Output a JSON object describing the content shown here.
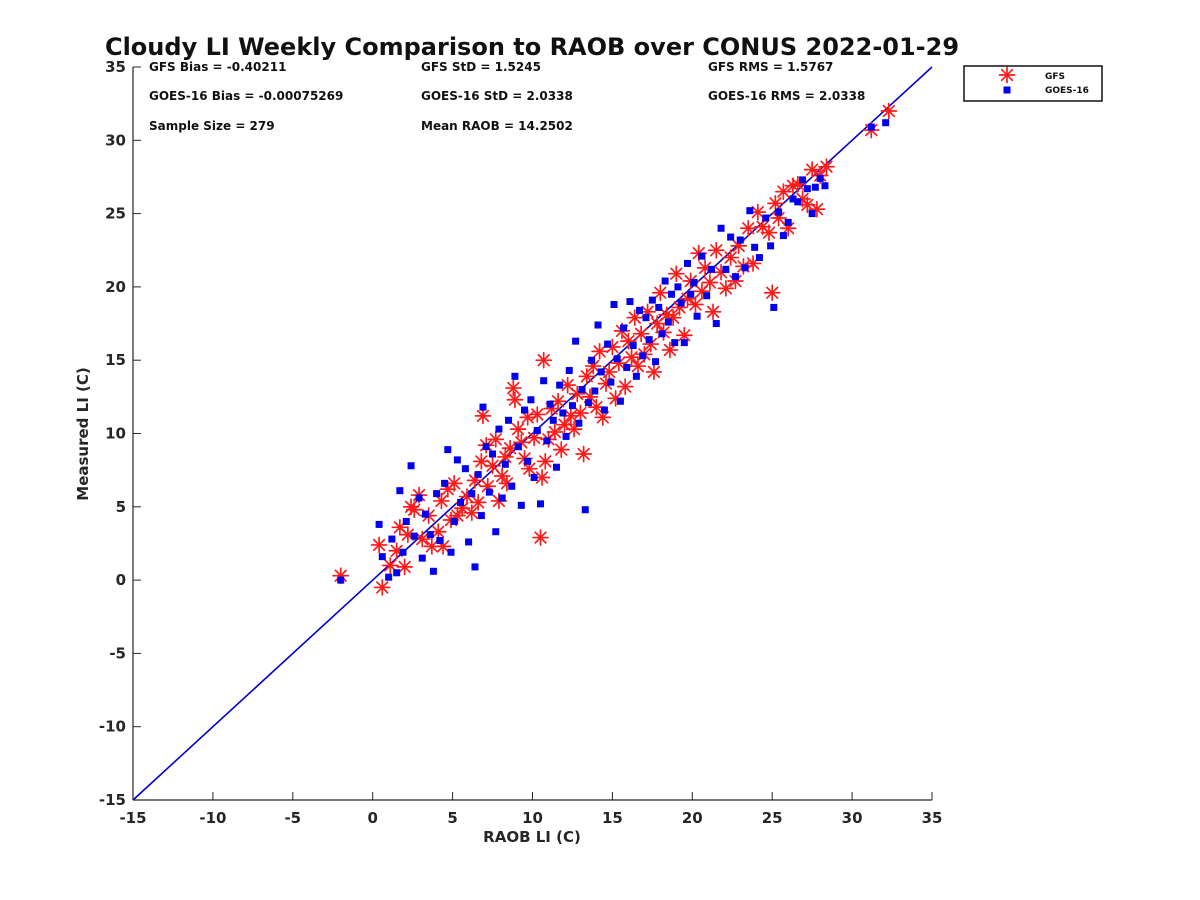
{
  "chart_data": {
    "type": "scatter",
    "title": "Cloudy LI Weekly Comparison to RAOB over CONUS 2022-01-29",
    "xlabel": "RAOB LI (C)",
    "ylabel": "Measured LI (C)",
    "xlim": [
      -15,
      35
    ],
    "ylim": [
      -15,
      35
    ],
    "xticks": [
      -15,
      -10,
      -5,
      0,
      5,
      10,
      15,
      20,
      25,
      30,
      35
    ],
    "yticks": [
      -15,
      -10,
      -5,
      0,
      5,
      10,
      15,
      20,
      25,
      30,
      35
    ],
    "grid": false,
    "legend_position": "outside-top-right",
    "stats_text": [
      [
        "GFS Bias = -0.40211",
        "GFS StD = 1.5245",
        "GFS RMS = 1.5767"
      ],
      [
        "GOES-16 Bias = -0.00075269",
        "GOES-16 StD = 2.0338",
        "GOES-16 RMS = 2.0338"
      ],
      [
        "Sample Size = 279",
        "Mean RAOB = 14.2502",
        ""
      ]
    ],
    "reference_line": {
      "x": [
        -15,
        35
      ],
      "y": [
        -15,
        35
      ],
      "color": "#0000cc"
    },
    "series": [
      {
        "name": "GFS",
        "marker": "asterisk",
        "color": "#ff1a1a",
        "points": [
          [
            -2,
            0.3
          ],
          [
            0.4,
            2.4
          ],
          [
            0.6,
            -0.5
          ],
          [
            1.1,
            1.0
          ],
          [
            1.5,
            2.0
          ],
          [
            1.7,
            3.6
          ],
          [
            2.0,
            0.9
          ],
          [
            2.2,
            3.1
          ],
          [
            2.4,
            5.0
          ],
          [
            2.6,
            4.8
          ],
          [
            2.9,
            5.8
          ],
          [
            3.1,
            2.8
          ],
          [
            3.5,
            4.4
          ],
          [
            3.7,
            2.3
          ],
          [
            4.1,
            3.3
          ],
          [
            4.3,
            5.4
          ],
          [
            4.4,
            2.3
          ],
          [
            4.7,
            6.2
          ],
          [
            4.9,
            4.1
          ],
          [
            5.1,
            6.6
          ],
          [
            5.3,
            4.4
          ],
          [
            5.6,
            4.9
          ],
          [
            5.9,
            5.7
          ],
          [
            6.2,
            4.6
          ],
          [
            6.4,
            6.8
          ],
          [
            6.6,
            5.3
          ],
          [
            6.8,
            8.1
          ],
          [
            6.9,
            11.2
          ],
          [
            7.1,
            9.2
          ],
          [
            7.2,
            6.4
          ],
          [
            7.5,
            7.8
          ],
          [
            7.7,
            9.6
          ],
          [
            7.9,
            5.4
          ],
          [
            8.1,
            7.1
          ],
          [
            8.3,
            8.4
          ],
          [
            8.4,
            6.6
          ],
          [
            8.6,
            9.0
          ],
          [
            8.8,
            13.1
          ],
          [
            8.9,
            12.3
          ],
          [
            9.1,
            10.3
          ],
          [
            9.3,
            9.4
          ],
          [
            9.5,
            8.3
          ],
          [
            9.7,
            11.1
          ],
          [
            9.8,
            7.6
          ],
          [
            10.1,
            9.7
          ],
          [
            10.3,
            11.3
          ],
          [
            10.5,
            2.9
          ],
          [
            10.6,
            7.0
          ],
          [
            10.7,
            15.0
          ],
          [
            10.8,
            8.1
          ],
          [
            11.0,
            9.6
          ],
          [
            11.2,
            11.7
          ],
          [
            11.4,
            10.1
          ],
          [
            11.6,
            12.2
          ],
          [
            11.8,
            8.9
          ],
          [
            12.0,
            10.6
          ],
          [
            12.2,
            13.3
          ],
          [
            12.4,
            11.2
          ],
          [
            12.6,
            10.3
          ],
          [
            12.8,
            12.7
          ],
          [
            13.0,
            11.4
          ],
          [
            13.2,
            8.6
          ],
          [
            13.4,
            13.9
          ],
          [
            13.6,
            12.5
          ],
          [
            13.8,
            14.6
          ],
          [
            14.0,
            11.8
          ],
          [
            14.2,
            15.6
          ],
          [
            14.4,
            11.1
          ],
          [
            14.6,
            13.4
          ],
          [
            14.8,
            14.2
          ],
          [
            15.0,
            15.9
          ],
          [
            15.2,
            12.4
          ],
          [
            15.4,
            14.8
          ],
          [
            15.6,
            17.0
          ],
          [
            15.8,
            13.2
          ],
          [
            16.0,
            16.3
          ],
          [
            16.2,
            15.2
          ],
          [
            16.4,
            17.9
          ],
          [
            16.6,
            14.6
          ],
          [
            16.8,
            16.8
          ],
          [
            17.0,
            15.4
          ],
          [
            17.2,
            18.3
          ],
          [
            17.4,
            16.1
          ],
          [
            17.6,
            14.2
          ],
          [
            17.8,
            17.5
          ],
          [
            18.0,
            19.6
          ],
          [
            18.2,
            16.9
          ],
          [
            18.4,
            18.1
          ],
          [
            18.6,
            15.7
          ],
          [
            18.8,
            17.9
          ],
          [
            19.0,
            20.9
          ],
          [
            19.2,
            18.6
          ],
          [
            19.5,
            16.7
          ],
          [
            19.7,
            19.2
          ],
          [
            19.9,
            20.4
          ],
          [
            20.2,
            18.8
          ],
          [
            20.4,
            22.3
          ],
          [
            20.6,
            19.7
          ],
          [
            20.8,
            21.3
          ],
          [
            21.1,
            20.3
          ],
          [
            21.3,
            18.3
          ],
          [
            21.5,
            22.5
          ],
          [
            21.8,
            21.0
          ],
          [
            22.1,
            19.9
          ],
          [
            22.4,
            22.0
          ],
          [
            22.7,
            20.4
          ],
          [
            22.9,
            22.8
          ],
          [
            23.2,
            21.4
          ],
          [
            23.5,
            24.0
          ],
          [
            23.8,
            21.6
          ],
          [
            24.1,
            25.1
          ],
          [
            24.4,
            24.1
          ],
          [
            24.8,
            23.7
          ],
          [
            25.0,
            19.6
          ],
          [
            25.2,
            25.7
          ],
          [
            25.4,
            24.7
          ],
          [
            25.7,
            26.5
          ],
          [
            26.0,
            24.0
          ],
          [
            26.3,
            26.9
          ],
          [
            26.6,
            27.0
          ],
          [
            26.9,
            26.0
          ],
          [
            27.2,
            25.6
          ],
          [
            27.5,
            28.0
          ],
          [
            27.8,
            25.3
          ],
          [
            28.0,
            27.6
          ],
          [
            28.4,
            28.2
          ],
          [
            31.2,
            30.7
          ],
          [
            32.3,
            32.0
          ]
        ]
      },
      {
        "name": "GOES-16",
        "marker": "square",
        "color": "#0000ee",
        "points": [
          [
            -2,
            0
          ],
          [
            0.4,
            3.8
          ],
          [
            0.6,
            1.6
          ],
          [
            1.0,
            0.2
          ],
          [
            1.2,
            2.8
          ],
          [
            1.5,
            0.5
          ],
          [
            1.7,
            6.1
          ],
          [
            1.9,
            1.9
          ],
          [
            2.1,
            4.0
          ],
          [
            2.4,
            7.8
          ],
          [
            2.6,
            3.0
          ],
          [
            2.9,
            5.6
          ],
          [
            3.1,
            1.5
          ],
          [
            3.3,
            4.5
          ],
          [
            3.6,
            3.1
          ],
          [
            3.8,
            0.6
          ],
          [
            4.0,
            5.9
          ],
          [
            4.2,
            2.7
          ],
          [
            4.5,
            6.6
          ],
          [
            4.7,
            8.9
          ],
          [
            4.9,
            1.9
          ],
          [
            5.1,
            4.0
          ],
          [
            5.3,
            8.2
          ],
          [
            5.5,
            5.3
          ],
          [
            5.8,
            7.6
          ],
          [
            6.0,
            2.6
          ],
          [
            6.2,
            5.9
          ],
          [
            6.4,
            0.9
          ],
          [
            6.6,
            7.2
          ],
          [
            6.8,
            4.4
          ],
          [
            6.9,
            11.8
          ],
          [
            7.1,
            9.1
          ],
          [
            7.3,
            6.0
          ],
          [
            7.5,
            8.6
          ],
          [
            7.7,
            3.3
          ],
          [
            7.9,
            10.3
          ],
          [
            8.1,
            5.6
          ],
          [
            8.3,
            7.9
          ],
          [
            8.5,
            10.9
          ],
          [
            8.7,
            6.4
          ],
          [
            8.9,
            13.9
          ],
          [
            9.1,
            9.1
          ],
          [
            9.3,
            5.1
          ],
          [
            9.5,
            11.6
          ],
          [
            9.7,
            8.1
          ],
          [
            9.9,
            12.3
          ],
          [
            10.1,
            7.0
          ],
          [
            10.3,
            10.2
          ],
          [
            10.5,
            5.2
          ],
          [
            10.7,
            13.6
          ],
          [
            10.9,
            9.5
          ],
          [
            11.1,
            12.0
          ],
          [
            11.3,
            10.9
          ],
          [
            11.5,
            7.7
          ],
          [
            11.7,
            13.3
          ],
          [
            11.9,
            11.4
          ],
          [
            12.1,
            9.8
          ],
          [
            12.3,
            14.3
          ],
          [
            12.5,
            11.9
          ],
          [
            12.7,
            16.3
          ],
          [
            12.9,
            10.7
          ],
          [
            13.1,
            13.0
          ],
          [
            13.3,
            4.8
          ],
          [
            13.5,
            12.1
          ],
          [
            13.7,
            15.0
          ],
          [
            13.9,
            12.9
          ],
          [
            14.1,
            17.4
          ],
          [
            14.3,
            14.2
          ],
          [
            14.5,
            11.6
          ],
          [
            14.7,
            16.1
          ],
          [
            14.9,
            13.5
          ],
          [
            15.1,
            18.8
          ],
          [
            15.3,
            15.1
          ],
          [
            15.5,
            12.2
          ],
          [
            15.7,
            17.2
          ],
          [
            15.9,
            14.5
          ],
          [
            16.1,
            19.0
          ],
          [
            16.3,
            16.0
          ],
          [
            16.5,
            13.9
          ],
          [
            16.7,
            18.4
          ],
          [
            16.9,
            15.3
          ],
          [
            17.1,
            17.9
          ],
          [
            17.3,
            16.4
          ],
          [
            17.5,
            19.1
          ],
          [
            17.7,
            14.9
          ],
          [
            17.9,
            18.6
          ],
          [
            18.1,
            16.8
          ],
          [
            18.3,
            20.4
          ],
          [
            18.5,
            17.6
          ],
          [
            18.7,
            19.5
          ],
          [
            18.9,
            16.2
          ],
          [
            19.1,
            20.0
          ],
          [
            19.3,
            18.9
          ],
          [
            19.5,
            16.2
          ],
          [
            19.7,
            21.6
          ],
          [
            19.9,
            19.5
          ],
          [
            20.1,
            20.3
          ],
          [
            20.3,
            18.0
          ],
          [
            20.6,
            22.1
          ],
          [
            20.9,
            19.4
          ],
          [
            21.2,
            21.2
          ],
          [
            21.5,
            17.5
          ],
          [
            21.8,
            24.0
          ],
          [
            22.1,
            21.2
          ],
          [
            22.4,
            23.4
          ],
          [
            22.7,
            20.7
          ],
          [
            23.0,
            23.2
          ],
          [
            23.3,
            21.3
          ],
          [
            23.6,
            25.2
          ],
          [
            23.9,
            22.7
          ],
          [
            24.2,
            22.0
          ],
          [
            24.6,
            24.7
          ],
          [
            24.9,
            22.8
          ],
          [
            25.1,
            18.6
          ],
          [
            25.4,
            25.1
          ],
          [
            25.7,
            23.5
          ],
          [
            26.0,
            24.4
          ],
          [
            26.3,
            26.0
          ],
          [
            26.6,
            25.8
          ],
          [
            26.9,
            27.3
          ],
          [
            27.2,
            26.7
          ],
          [
            27.5,
            25.0
          ],
          [
            27.7,
            26.8
          ],
          [
            28.0,
            27.4
          ],
          [
            28.3,
            26.9
          ],
          [
            31.2,
            30.9
          ],
          [
            32.1,
            31.2
          ]
        ]
      }
    ]
  }
}
